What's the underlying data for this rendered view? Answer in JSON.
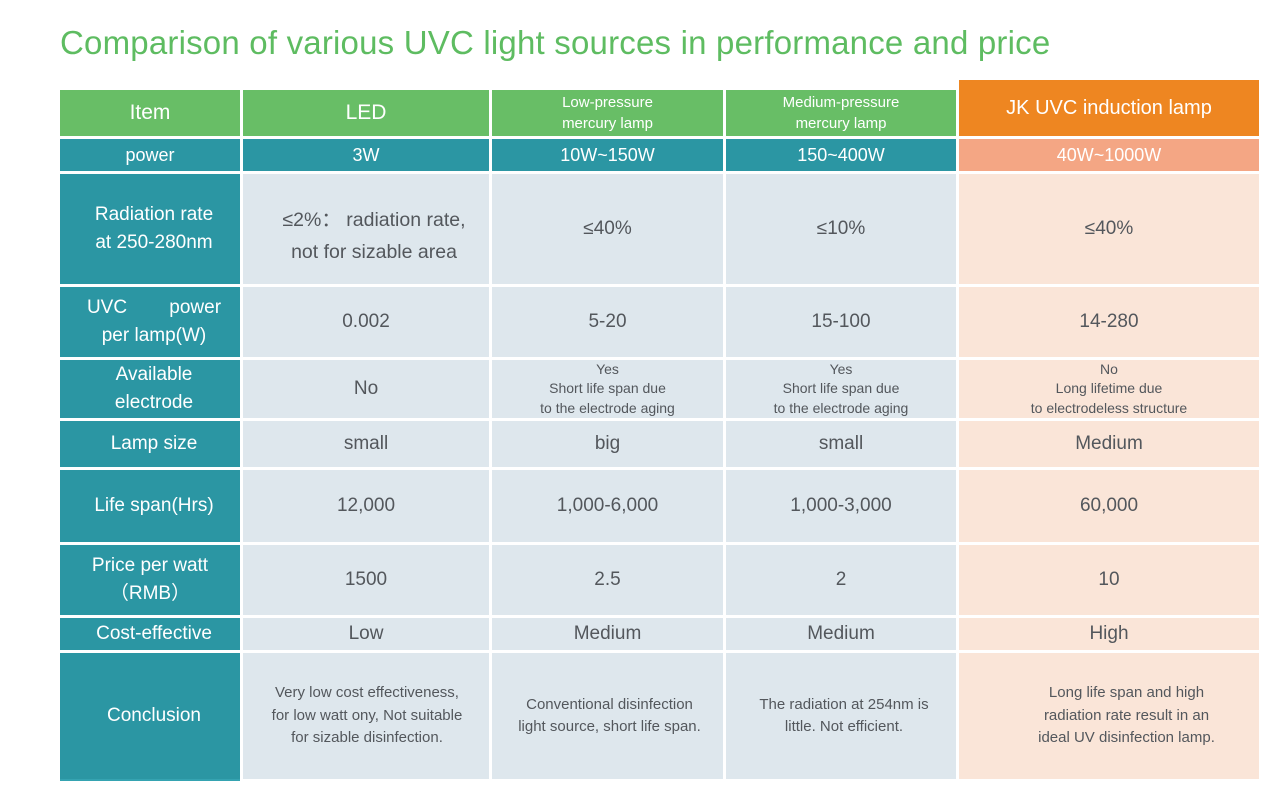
{
  "title": "Comparison of various UVC light sources in performance and price",
  "colors": {
    "title_green": "#5ebc61",
    "header_green": "#68be66",
    "teal": "#2b96a3",
    "orange": "#ee8621",
    "salmon": "#f4a684",
    "cell_blue": "#dee7ed",
    "cell_peach": "#fae5d8",
    "cell_text": "#53575c"
  },
  "header": {
    "item": "Item",
    "led": "LED",
    "low_pressure": "Low-pressure\nmercury lamp",
    "medium_pressure": "Medium-pressure\nmercury lamp",
    "jk_uvc": "JK UVC induction lamp"
  },
  "chart_data": {
    "type": "table",
    "title": "Comparison of various UVC light sources in performance and price",
    "columns": [
      "Item",
      "LED",
      "Low-pressure mercury lamp",
      "Medium-pressure mercury lamp",
      "JK UVC induction lamp"
    ],
    "rows": [
      {
        "item": "power",
        "led": "3W",
        "low_pressure": "10W~150W",
        "medium_pressure": "150~400W",
        "jk_uvc": "40W~1000W"
      },
      {
        "item": "Radiation rate\nat 250-280nm",
        "led": "≤2%： radiation rate,\nnot for sizable area",
        "low_pressure": "≤40%",
        "medium_pressure": "≤10%",
        "jk_uvc": "≤40%"
      },
      {
        "item": "UVC        power\nper lamp(W)",
        "led": "0.002",
        "low_pressure": "5-20",
        "medium_pressure": "15-100",
        "jk_uvc": "14-280"
      },
      {
        "item": "Available\nelectrode",
        "led": "No",
        "low_pressure": "Yes\nShort life span due\nto the electrode aging",
        "medium_pressure": "Yes\nShort life span due\nto the electrode aging",
        "jk_uvc": "No\nLong lifetime due\nto electrodeless structure"
      },
      {
        "item": "Lamp size",
        "led": "small",
        "low_pressure": "big",
        "medium_pressure": "small",
        "jk_uvc": "Medium"
      },
      {
        "item": "Life span(Hrs)",
        "led": "12,000",
        "low_pressure": "1,000-6,000",
        "medium_pressure": "1,000-3,000",
        "jk_uvc": "60,000"
      },
      {
        "item": "Price per watt\n（RMB）",
        "led": "1500",
        "low_pressure": "2.5",
        "medium_pressure": "2",
        "jk_uvc": "10"
      },
      {
        "item": "Cost-effective",
        "led": "Low",
        "low_pressure": "Medium",
        "medium_pressure": "Medium",
        "jk_uvc": "High"
      },
      {
        "item": "Conclusion",
        "led": "Very low cost effectiveness,\nfor low watt ony, Not suitable\nfor sizable disinfection.",
        "low_pressure": "Conventional disinfection\nlight source, short life span.",
        "medium_pressure": "The radiation at 254nm is\nlittle. Not efficient.",
        "jk_uvc": "Long life span and high\nradiation rate result in an\nideal UV disinfection lamp."
      }
    ]
  }
}
